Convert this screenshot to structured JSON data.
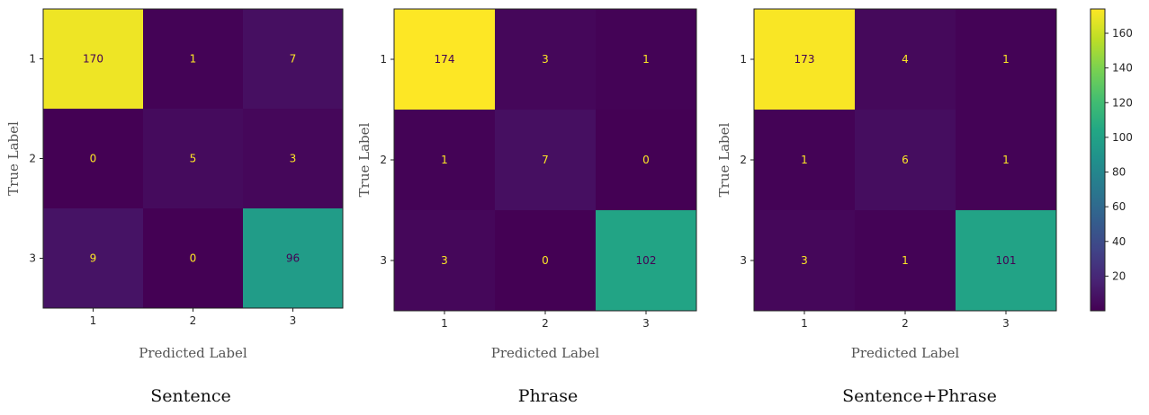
{
  "chart_data": [
    {
      "type": "heatmap",
      "caption": "Sentence",
      "xlabel": "Predicted Label",
      "ylabel": "True Label",
      "x_categories": [
        "1",
        "2",
        "3"
      ],
      "y_categories": [
        "1",
        "2",
        "3"
      ],
      "matrix": [
        [
          170,
          1,
          7
        ],
        [
          0,
          5,
          3
        ],
        [
          9,
          0,
          96
        ]
      ]
    },
    {
      "type": "heatmap",
      "caption": "Phrase",
      "xlabel": "Predicted Label",
      "ylabel": "True Label",
      "x_categories": [
        "1",
        "2",
        "3"
      ],
      "y_categories": [
        "1",
        "2",
        "3"
      ],
      "matrix": [
        [
          174,
          3,
          1
        ],
        [
          1,
          7,
          0
        ],
        [
          3,
          0,
          102
        ]
      ]
    },
    {
      "type": "heatmap",
      "caption": "Sentence+Phrase",
      "xlabel": "Predicted Label",
      "ylabel": "True Label",
      "x_categories": [
        "1",
        "2",
        "3"
      ],
      "y_categories": [
        "1",
        "2",
        "3"
      ],
      "matrix": [
        [
          173,
          4,
          1
        ],
        [
          1,
          6,
          1
        ],
        [
          3,
          1,
          101
        ]
      ]
    }
  ],
  "colorbar": {
    "colormap": "viridis",
    "vmin": 0,
    "vmax": 174,
    "ticks": [
      20,
      40,
      60,
      80,
      100,
      120,
      140,
      160
    ]
  },
  "colors": {
    "text_on_dark": "#fde725",
    "text_on_light": "#440154"
  }
}
